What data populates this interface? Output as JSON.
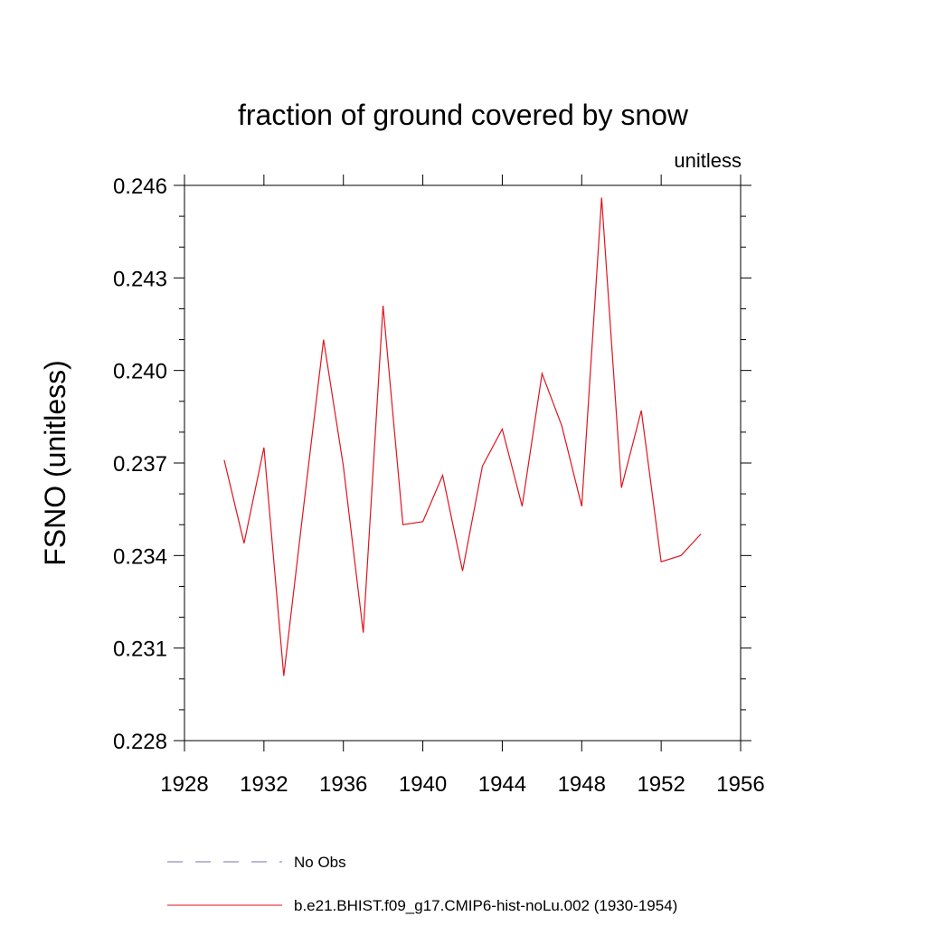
{
  "chart_data": {
    "type": "line",
    "title": "fraction of ground covered by snow",
    "units_label": "unitless",
    "ylabel": "FSNO  (unitless)",
    "xlabel": "",
    "xlim": [
      1928,
      1956
    ],
    "ylim": [
      0.228,
      0.246
    ],
    "x_ticks": [
      1928,
      1932,
      1936,
      1940,
      1944,
      1948,
      1952,
      1956
    ],
    "y_ticks": [
      "0.228",
      "0.231",
      "0.234",
      "0.237",
      "0.240",
      "0.243",
      "0.246"
    ],
    "grid": false,
    "legend_placement": "bottom",
    "series": [
      {
        "name": "No Obs",
        "color": "#7a6fb0",
        "dash": "dashed",
        "x": [],
        "values": []
      },
      {
        "name": "b.e21.BHIST.f09_g17.CMIP6-hist-noLu.002 (1930-1954)",
        "color": "#e0141e",
        "dash": "solid",
        "x": [
          1930,
          1931,
          1932,
          1933,
          1934,
          1935,
          1936,
          1937,
          1938,
          1939,
          1940,
          1941,
          1942,
          1943,
          1944,
          1945,
          1946,
          1947,
          1948,
          1949,
          1950,
          1951,
          1952,
          1953,
          1954
        ],
        "values": [
          0.2371,
          0.2344,
          0.2375,
          0.2301,
          0.2356,
          0.241,
          0.2369,
          0.2315,
          0.2421,
          0.235,
          0.2351,
          0.2366,
          0.2335,
          0.2369,
          0.2381,
          0.2356,
          0.2399,
          0.2382,
          0.2356,
          0.2456,
          0.2362,
          0.2387,
          0.2338,
          0.234,
          0.2347
        ]
      }
    ]
  }
}
